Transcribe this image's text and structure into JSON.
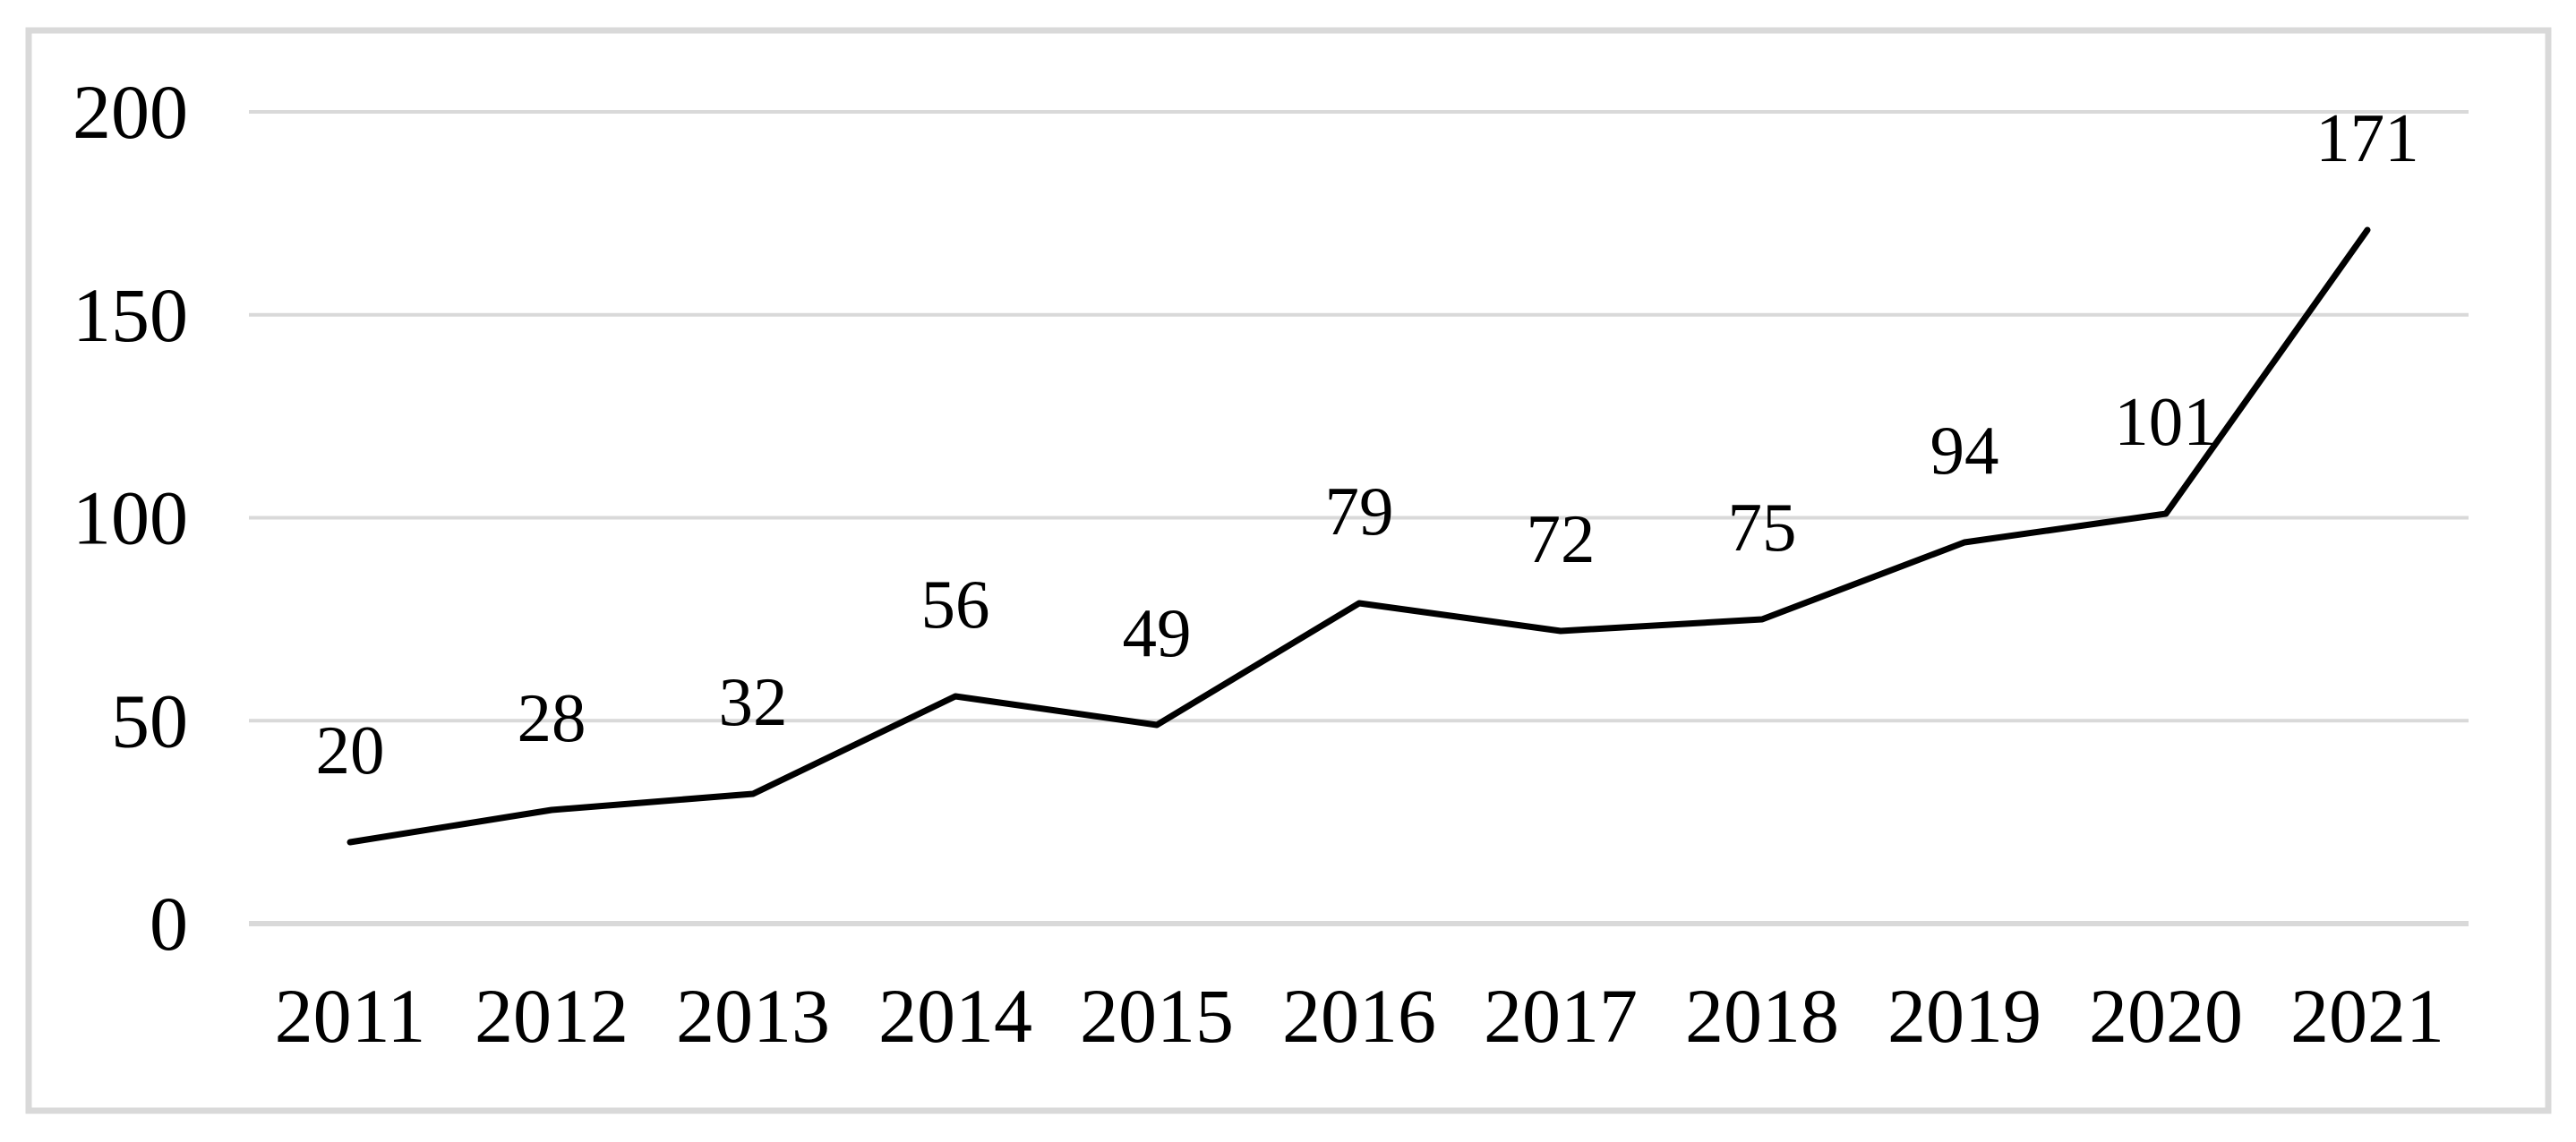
{
  "chart_data": {
    "type": "line",
    "title": "",
    "xlabel": "",
    "ylabel": "",
    "categories": [
      "2011",
      "2012",
      "2013",
      "2014",
      "2015",
      "2016",
      "2017",
      "2018",
      "2019",
      "2020",
      "2021"
    ],
    "values": [
      20,
      28,
      32,
      56,
      49,
      79,
      72,
      75,
      94,
      101,
      171
    ],
    "data_labels_shown": true,
    "data_label_position": "above",
    "ylim": [
      0,
      200
    ],
    "yticks": [
      0,
      50,
      100,
      150,
      200
    ],
    "grid": true,
    "gridlines": "horizontal-only",
    "legend_position": "none",
    "markers": "none",
    "colors": {
      "line": "#000000",
      "gridline": "#d9d9d9",
      "axis_line": "#d9d9d9",
      "border": "#d9d9d9",
      "text": "#000000",
      "background": "#ffffff"
    }
  }
}
